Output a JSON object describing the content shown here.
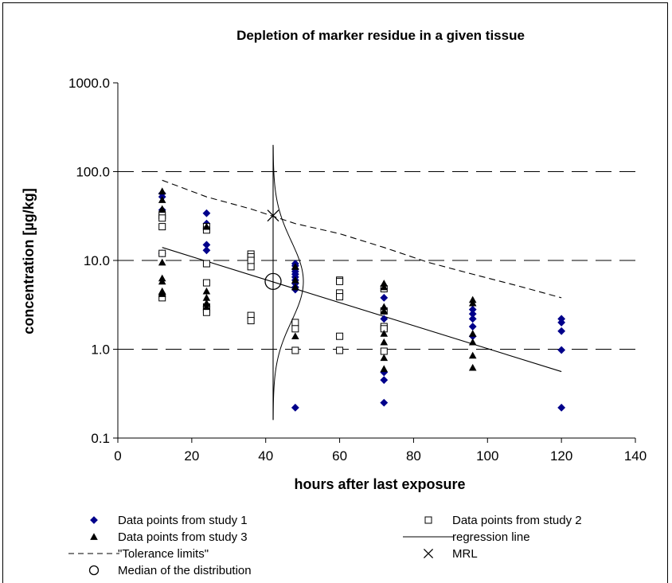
{
  "chart_data": {
    "type": "scatter",
    "title": "Depletion of marker residue in a given tissue",
    "xlabel": "hours after last exposure",
    "ylabel": "concentration [µg/kg]",
    "xlim": [
      0,
      140
    ],
    "ylim": [
      0.1,
      1000
    ],
    "y_scale": "log",
    "x_ticks": [
      "0",
      "20",
      "40",
      "60",
      "80",
      "100",
      "120",
      "140"
    ],
    "y_ticks": [
      "0.1",
      "1.0",
      "10.0",
      "100.0",
      "1000.0"
    ],
    "grid": "horizontal dashed at 1, 10, 100",
    "legend_position": "bottom",
    "series": [
      {
        "name": "Data points from study 1",
        "marker": "diamond",
        "color": "#00008b",
        "points": [
          [
            12,
            57
          ],
          [
            12,
            52
          ],
          [
            12,
            37
          ],
          [
            12,
            12
          ],
          [
            24,
            34
          ],
          [
            24,
            26
          ],
          [
            24,
            23
          ],
          [
            24,
            15
          ],
          [
            24,
            13
          ],
          [
            48,
            9.2
          ],
          [
            48,
            8.7
          ],
          [
            48,
            8.0
          ],
          [
            48,
            7.5
          ],
          [
            48,
            7.0
          ],
          [
            48,
            6.5
          ],
          [
            48,
            6.0
          ],
          [
            48,
            5.5
          ],
          [
            48,
            5.0
          ],
          [
            48,
            4.7
          ],
          [
            48,
            0.22
          ],
          [
            72,
            4.8
          ],
          [
            72,
            3.8
          ],
          [
            72,
            2.2
          ],
          [
            72,
            0.55
          ],
          [
            72,
            0.45
          ],
          [
            72,
            0.25
          ],
          [
            96,
            2.8
          ],
          [
            96,
            2.5
          ],
          [
            96,
            2.2
          ],
          [
            96,
            1.8
          ],
          [
            96,
            1.4
          ],
          [
            120,
            2.2
          ],
          [
            120,
            2.0
          ],
          [
            120,
            1.6
          ],
          [
            120,
            0.98
          ],
          [
            120,
            0.22
          ]
        ]
      },
      {
        "name": "Data points from study 2",
        "marker": "square",
        "color": "#000000",
        "points": [
          [
            12,
            32
          ],
          [
            12,
            30
          ],
          [
            12,
            24
          ],
          [
            12,
            12
          ],
          [
            12,
            3.8
          ],
          [
            24,
            24
          ],
          [
            24,
            22
          ],
          [
            24,
            9.2
          ],
          [
            24,
            5.6
          ],
          [
            24,
            3.0
          ],
          [
            24,
            2.8
          ],
          [
            24,
            2.6
          ],
          [
            36,
            11.8
          ],
          [
            36,
            11.0
          ],
          [
            36,
            10.0
          ],
          [
            36,
            8.5
          ],
          [
            36,
            2.4
          ],
          [
            36,
            2.1
          ],
          [
            48,
            2.0
          ],
          [
            48,
            1.7
          ],
          [
            48,
            0.97
          ],
          [
            60,
            6.0
          ],
          [
            60,
            5.8
          ],
          [
            60,
            4.3
          ],
          [
            60,
            3.9
          ],
          [
            60,
            1.4
          ],
          [
            60,
            0.97
          ],
          [
            72,
            4.8
          ],
          [
            72,
            2.7
          ],
          [
            72,
            1.8
          ],
          [
            72,
            1.7
          ],
          [
            72,
            0.95
          ]
        ]
      },
      {
        "name": "Data points from study 3",
        "marker": "triangle",
        "color": "#000000",
        "points": [
          [
            12,
            60
          ],
          [
            12,
            48
          ],
          [
            12,
            38
          ],
          [
            12,
            9.5
          ],
          [
            12,
            6.3
          ],
          [
            12,
            5.8
          ],
          [
            12,
            4.5
          ],
          [
            12,
            4.2
          ],
          [
            24,
            24
          ],
          [
            24,
            4.5
          ],
          [
            24,
            3.8
          ],
          [
            24,
            3.3
          ],
          [
            24,
            3.0
          ],
          [
            48,
            8.5
          ],
          [
            48,
            6.0
          ],
          [
            48,
            5.0
          ],
          [
            48,
            1.4
          ],
          [
            72,
            5.5
          ],
          [
            72,
            5.0
          ],
          [
            72,
            3.0
          ],
          [
            72,
            2.7
          ],
          [
            72,
            1.5
          ],
          [
            72,
            1.2
          ],
          [
            72,
            0.8
          ],
          [
            72,
            0.6
          ],
          [
            96,
            3.6
          ],
          [
            96,
            3.3
          ],
          [
            96,
            1.5
          ],
          [
            96,
            1.2
          ],
          [
            96,
            0.85
          ],
          [
            96,
            0.62
          ]
        ]
      },
      {
        "name": "\"Tolerance limits\"",
        "style": "dashed-line",
        "color": "#000000",
        "points": [
          [
            12,
            80
          ],
          [
            24,
            52
          ],
          [
            36,
            38
          ],
          [
            48,
            26
          ],
          [
            60,
            20
          ],
          [
            72,
            14
          ],
          [
            84,
            9.5
          ],
          [
            96,
            7
          ],
          [
            108,
            5.2
          ],
          [
            120,
            3.8
          ]
        ]
      },
      {
        "name": "regression line",
        "style": "solid-line",
        "color": "#000000",
        "points": [
          [
            12,
            14
          ],
          [
            120,
            0.56
          ]
        ]
      }
    ],
    "annotations": [
      {
        "name": "MRL",
        "marker": "x",
        "x": 42,
        "y": 32
      },
      {
        "name": "Median of the distribution",
        "marker": "circle",
        "x": 42,
        "y": 5.8
      },
      {
        "label": "vertical line at 42 h",
        "x": 42,
        "y_range": [
          0.16,
          200
        ]
      }
    ],
    "legend": [
      {
        "symbol": "diamond",
        "label": "Data points from study 1"
      },
      {
        "symbol": "square",
        "label": "Data points from study 2"
      },
      {
        "symbol": "triangle",
        "label": "Data points from study 3"
      },
      {
        "symbol": "solid-line",
        "label": "regression line"
      },
      {
        "symbol": "dashed-line",
        "label": "\"Tolerance limits\""
      },
      {
        "symbol": "x",
        "label": "MRL"
      },
      {
        "symbol": "circle",
        "label": "Median of the distribution"
      }
    ]
  }
}
